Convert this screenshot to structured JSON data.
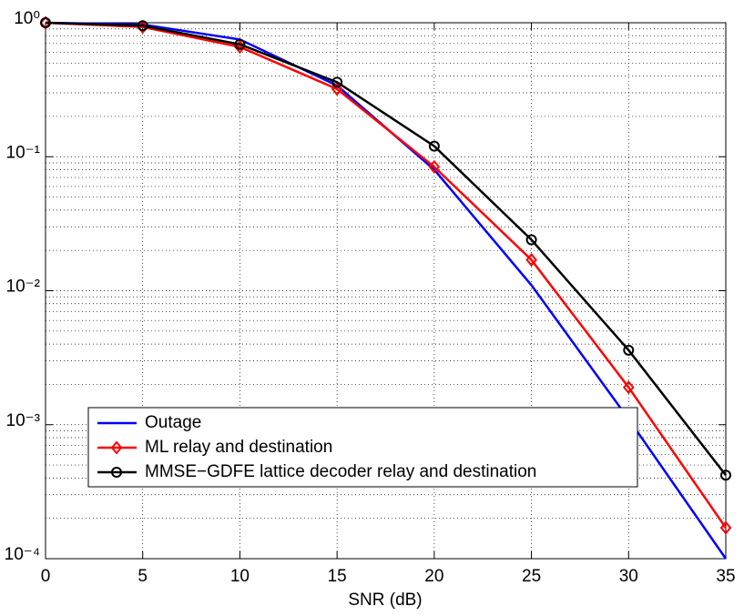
{
  "chart_data": {
    "type": "line",
    "xlabel": "SNR (dB)",
    "x": [
      0,
      5,
      10,
      15,
      20,
      25,
      30,
      35
    ],
    "xlim": [
      0,
      35
    ],
    "xticks": [
      0,
      5,
      10,
      15,
      20,
      25,
      30,
      35
    ],
    "ylim": [
      0.0001,
      1
    ],
    "yscale": "log",
    "yticks": [
      {
        "value": 0.0001,
        "label": "10⁻⁴"
      },
      {
        "value": 0.001,
        "label": "10⁻³"
      },
      {
        "value": 0.01,
        "label": "10⁻²"
      },
      {
        "value": 0.1,
        "label": "10⁻¹"
      },
      {
        "value": 1,
        "label": "10⁰"
      }
    ],
    "grid": true,
    "minor_grid": true,
    "legend": "lower left",
    "series": [
      {
        "name": "Outage",
        "color": "#0000ff",
        "marker": "none",
        "values": [
          1,
          0.97,
          0.75,
          0.34,
          0.08,
          0.011,
          0.0011,
          0.0001
        ]
      },
      {
        "name": "ML relay and destination",
        "color": "#ff0000",
        "marker": "diamond",
        "values": [
          1,
          0.93,
          0.66,
          0.32,
          0.084,
          0.017,
          0.0019,
          0.00017
        ]
      },
      {
        "name": "MMSE−GDFE lattice decoder relay and destination",
        "color": "#000000",
        "marker": "circle",
        "values": [
          1,
          0.95,
          0.69,
          0.36,
          0.12,
          0.024,
          0.0036,
          0.00042
        ]
      }
    ]
  }
}
